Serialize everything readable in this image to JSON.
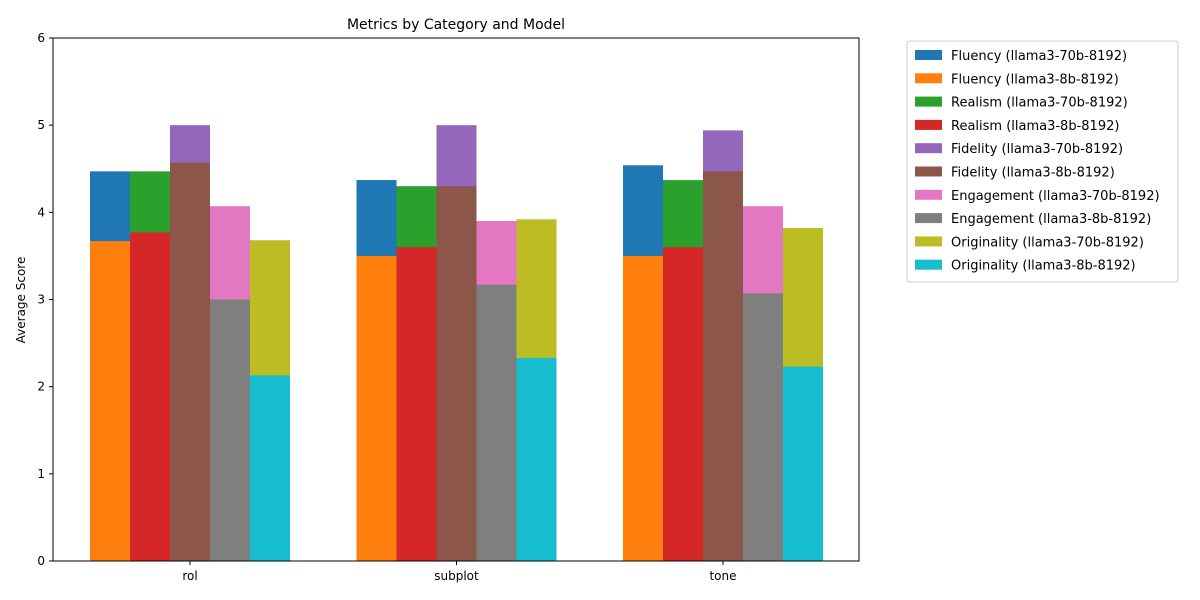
{
  "chart_data": {
    "type": "bar",
    "title": "Metrics by Category and Model",
    "xlabel": "",
    "ylabel": "Average Score",
    "ylim": [
      0,
      6
    ],
    "yticks": [
      0,
      1,
      2,
      3,
      4,
      5,
      6
    ],
    "categories": [
      "rol",
      "subplot",
      "tone"
    ],
    "grid": false,
    "legend_position": "outside-top-right",
    "metrics": [
      {
        "metric": "Fluency",
        "series": [
          {
            "name": "Fluency (llama3-70b-8192)",
            "color": "#1f77b4",
            "values": [
              4.47,
              4.37,
              4.54
            ]
          },
          {
            "name": "Fluency (llama3-8b-8192)",
            "color": "#ff7f0e",
            "values": [
              3.67,
              3.5,
              3.5
            ]
          }
        ]
      },
      {
        "metric": "Realism",
        "series": [
          {
            "name": "Realism (llama3-70b-8192)",
            "color": "#2ca02c",
            "values": [
              4.47,
              4.3,
              4.37
            ]
          },
          {
            "name": "Realism (llama3-8b-8192)",
            "color": "#d62728",
            "values": [
              3.77,
              3.6,
              3.6
            ]
          }
        ]
      },
      {
        "metric": "Fidelity",
        "series": [
          {
            "name": "Fidelity (llama3-70b-8192)",
            "color": "#9467bd",
            "values": [
              5.0,
              5.0,
              4.94
            ]
          },
          {
            "name": "Fidelity (llama3-8b-8192)",
            "color": "#8c564b",
            "values": [
              4.57,
              4.3,
              4.47
            ]
          }
        ]
      },
      {
        "metric": "Engagement",
        "series": [
          {
            "name": "Engagement (llama3-70b-8192)",
            "color": "#e377c2",
            "values": [
              4.07,
              3.9,
              4.07
            ]
          },
          {
            "name": "Engagement (llama3-8b-8192)",
            "color": "#7f7f7f",
            "values": [
              3.0,
              3.17,
              3.07
            ]
          }
        ]
      },
      {
        "metric": "Originality",
        "series": [
          {
            "name": "Originality (llama3-70b-8192)",
            "color": "#bcbd22",
            "values": [
              3.68,
              3.92,
              3.82
            ]
          },
          {
            "name": "Originality (llama3-8b-8192)",
            "color": "#17becf",
            "values": [
              2.13,
              2.33,
              2.23
            ]
          }
        ]
      }
    ]
  }
}
